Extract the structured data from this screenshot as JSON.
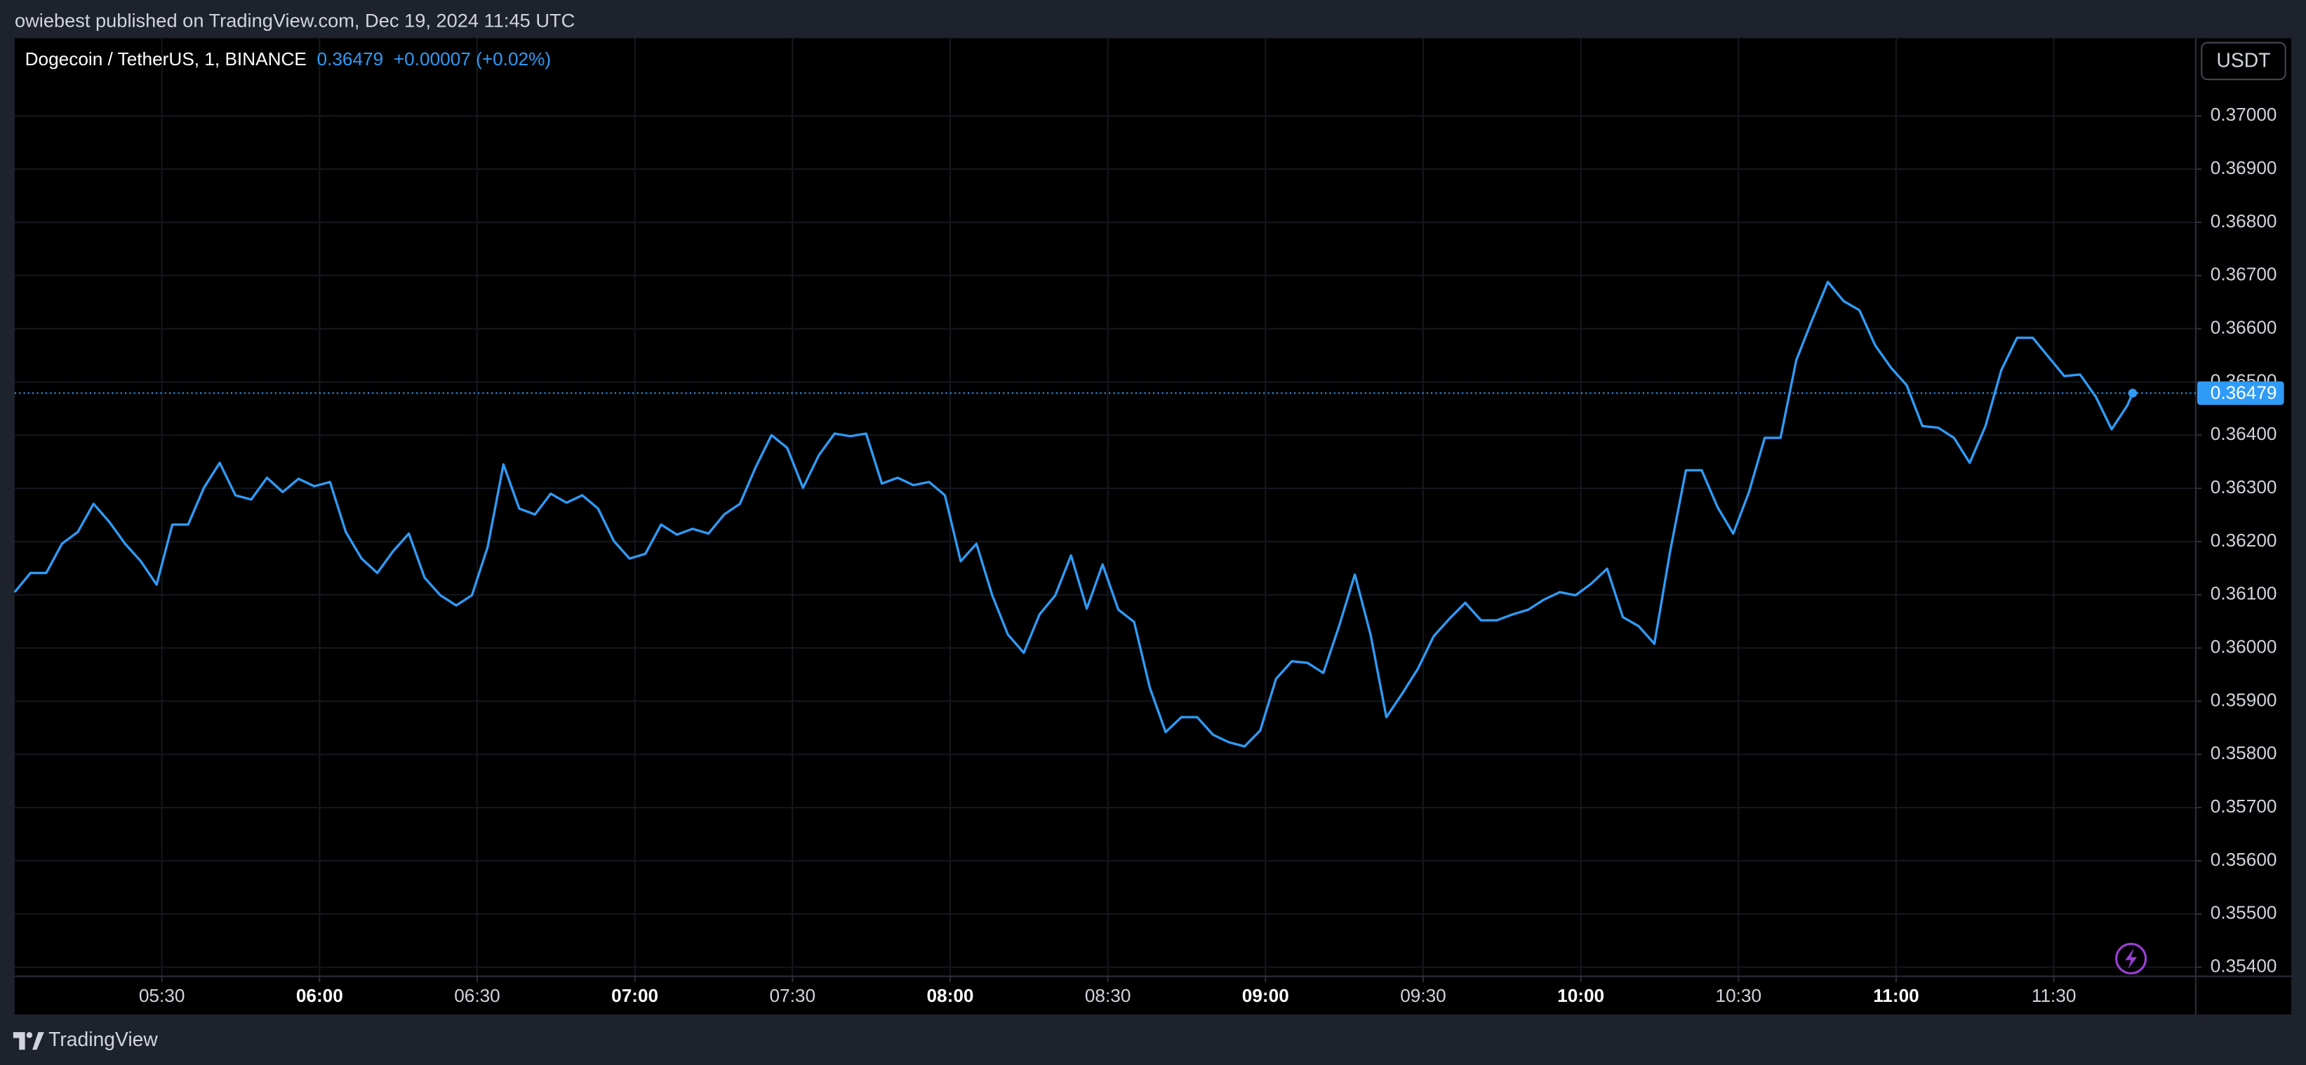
{
  "chart_data": {
    "type": "line",
    "attribution": "owiebest published on TradingView.com, Dec 19, 2024 11:45 UTC",
    "title": "Dogecoin / TetherUS, 1, BINANCE",
    "last_price": "0.36479",
    "change": "+0.00007 (+0.02%)",
    "currency": "USDT",
    "brand": "TradingView",
    "color": "#2f9bf6",
    "grid": true,
    "x": [
      "05:02",
      "05:05",
      "05:08",
      "05:11",
      "05:14",
      "05:17",
      "05:20",
      "05:23",
      "05:26",
      "05:29",
      "05:32",
      "05:35",
      "05:38",
      "05:41",
      "05:44",
      "05:47",
      "05:50",
      "05:53",
      "05:56",
      "05:59",
      "06:02",
      "06:05",
      "06:08",
      "06:11",
      "06:14",
      "06:17",
      "06:20",
      "06:23",
      "06:26",
      "06:29",
      "06:32",
      "06:35",
      "06:38",
      "06:41",
      "06:44",
      "06:47",
      "06:50",
      "06:53",
      "06:56",
      "06:59",
      "07:02",
      "07:05",
      "07:08",
      "07:11",
      "07:14",
      "07:17",
      "07:20",
      "07:23",
      "07:26",
      "07:29",
      "07:32",
      "07:35",
      "07:38",
      "07:41",
      "07:44",
      "07:47",
      "07:50",
      "07:53",
      "07:56",
      "07:59",
      "08:02",
      "08:05",
      "08:08",
      "08:11",
      "08:14",
      "08:17",
      "08:20",
      "08:23",
      "08:26",
      "08:29",
      "08:32",
      "08:35",
      "08:38",
      "08:41",
      "08:44",
      "08:47",
      "08:50",
      "08:53",
      "08:56",
      "08:59",
      "09:02",
      "09:05",
      "09:08",
      "09:11",
      "09:14",
      "09:17",
      "09:20",
      "09:23",
      "09:26",
      "09:29",
      "09:32",
      "09:35",
      "09:38",
      "09:41",
      "09:44",
      "09:47",
      "09:50",
      "09:53",
      "09:56",
      "09:59",
      "10:02",
      "10:05",
      "10:08",
      "10:11",
      "10:14",
      "10:17",
      "10:20",
      "10:23",
      "10:26",
      "10:29",
      "10:32",
      "10:35",
      "10:38",
      "10:41",
      "10:44",
      "10:47",
      "10:50",
      "10:53",
      "10:56",
      "10:59",
      "11:02",
      "11:05",
      "11:08",
      "11:11",
      "11:14",
      "11:17",
      "11:20",
      "11:23",
      "11:26",
      "11:29",
      "11:32",
      "11:35",
      "11:38",
      "11:41",
      "11:44",
      "11:45"
    ],
    "values": [
      0.36105,
      0.36141,
      0.36141,
      0.36196,
      0.36218,
      0.36271,
      0.36237,
      0.36196,
      0.36163,
      0.36119,
      0.36232,
      0.36232,
      0.36301,
      0.36348,
      0.36287,
      0.36279,
      0.3632,
      0.36293,
      0.36318,
      0.36304,
      0.36312,
      0.36218,
      0.36168,
      0.36141,
      0.36182,
      0.36215,
      0.36132,
      0.36099,
      0.3608,
      0.36099,
      0.3619,
      0.36345,
      0.36262,
      0.36251,
      0.3629,
      0.36273,
      0.36287,
      0.36262,
      0.36201,
      0.36168,
      0.36177,
      0.36232,
      0.36213,
      0.36224,
      0.36215,
      0.36251,
      0.36271,
      0.3634,
      0.364,
      0.36376,
      0.36301,
      0.36362,
      0.36403,
      0.36398,
      0.36403,
      0.36309,
      0.3632,
      0.36306,
      0.36312,
      0.36287,
      0.36163,
      0.36196,
      0.36099,
      0.36025,
      0.35991,
      0.36063,
      0.36099,
      0.36174,
      0.36074,
      0.36157,
      0.36072,
      0.36049,
      0.35925,
      0.35842,
      0.3587,
      0.3587,
      0.35837,
      0.35823,
      0.35815,
      0.35845,
      0.35942,
      0.35975,
      0.35972,
      0.35953,
      0.36041,
      0.36138,
      0.36025,
      0.3587,
      0.35914,
      0.35961,
      0.36022,
      0.36055,
      0.36085,
      0.36052,
      0.36052,
      0.36063,
      0.36072,
      0.36091,
      0.36105,
      0.36099,
      0.36121,
      0.36149,
      0.36058,
      0.36041,
      0.36008,
      0.36182,
      0.36334,
      0.36334,
      0.36265,
      0.36215,
      0.36293,
      0.36395,
      0.36395,
      0.36541,
      0.36616,
      0.36688,
      0.36652,
      0.36635,
      0.36569,
      0.36527,
      0.36494,
      0.36417,
      0.36414,
      0.36395,
      0.36348,
      0.36417,
      0.36522,
      0.36583,
      0.36583,
      0.36547,
      0.36511,
      0.36514,
      0.36472,
      0.36411,
      0.36456,
      0.36479
    ],
    "xlim": [
      "05:02",
      "11:57"
    ],
    "xticks": [
      "05:30",
      "06:00",
      "06:30",
      "07:00",
      "07:30",
      "08:00",
      "08:30",
      "09:00",
      "09:30",
      "10:00",
      "10:30",
      "11:00",
      "11:30"
    ],
    "ylim": [
      0.35383,
      0.37146
    ],
    "yticks": [
      {
        "value": 0.354,
        "label": "0.35400"
      },
      {
        "value": 0.355,
        "label": "0.35500"
      },
      {
        "value": 0.356,
        "label": "0.35600"
      },
      {
        "value": 0.357,
        "label": "0.35700"
      },
      {
        "value": 0.358,
        "label": "0.35800"
      },
      {
        "value": 0.359,
        "label": "0.35900"
      },
      {
        "value": 0.36,
        "label": "0.36000"
      },
      {
        "value": 0.361,
        "label": "0.36100"
      },
      {
        "value": 0.362,
        "label": "0.36200"
      },
      {
        "value": 0.363,
        "label": "0.36300"
      },
      {
        "value": 0.364,
        "label": "0.36400"
      },
      {
        "value": 0.365,
        "label": "0.36500"
      },
      {
        "value": 0.366,
        "label": "0.36600"
      },
      {
        "value": 0.367,
        "label": "0.36700"
      },
      {
        "value": 0.368,
        "label": "0.36800"
      },
      {
        "value": 0.369,
        "label": "0.36900"
      },
      {
        "value": 0.37,
        "label": "0.37000"
      }
    ]
  }
}
